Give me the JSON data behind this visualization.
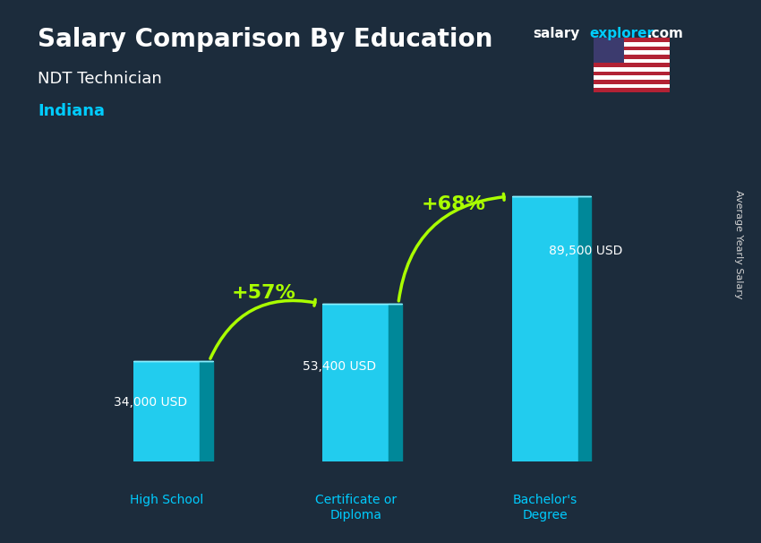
{
  "title1": "Salary Comparison By Education",
  "subtitle1": "NDT Technician",
  "subtitle2": "Indiana",
  "ylabel": "Average Yearly Salary",
  "categories": [
    "High School",
    "Certificate or\nDiploma",
    "Bachelor's\nDegree"
  ],
  "values": [
    34000,
    53400,
    89500
  ],
  "value_labels": [
    "34,000 USD",
    "53,400 USD",
    "89,500 USD"
  ],
  "pct_labels": [
    "+57%",
    "+68%"
  ],
  "bar_color_top": "#00d4e8",
  "bar_color_mid": "#00aacc",
  "bar_color_bot": "#0077aa",
  "bar_color_left": "#0099bb",
  "bg_color": "#1a2a3a",
  "title_color": "#ffffff",
  "subtitle1_color": "#ffffff",
  "subtitle2_color": "#00ccff",
  "value_color": "#ffffff",
  "pct_color": "#aaff00",
  "xlabel_color": "#00ccff",
  "brand_salary": "salary",
  "brand_explorer": "explorer",
  "brand_com": ".com",
  "arrow_color": "#aaff00",
  "ylim_max": 110000
}
